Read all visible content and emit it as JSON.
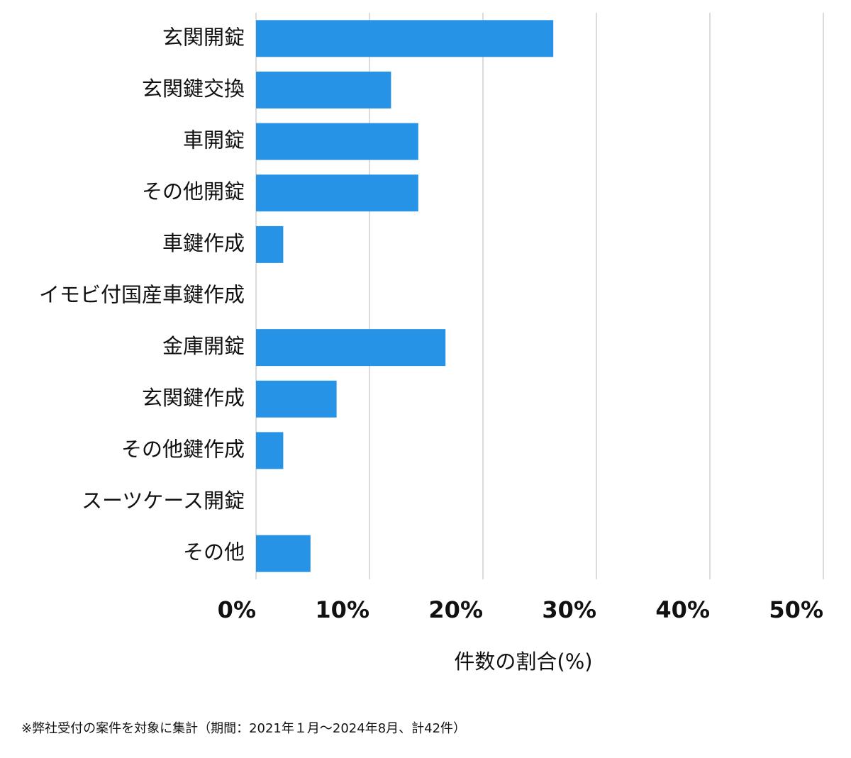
{
  "chart_data": {
    "type": "barh",
    "categories": [
      "玄関開錠",
      "玄関鍵交換",
      "車開錠",
      "その他開錠",
      "車鍵作成",
      "イモビ付国産車鍵作成",
      "金庫開錠",
      "玄関鍵作成",
      "その他鍵作成",
      "スーツケース開錠",
      "その他"
    ],
    "values": [
      26.2,
      11.9,
      14.3,
      14.3,
      2.4,
      0,
      16.7,
      7.1,
      2.4,
      0,
      4.8
    ],
    "color": "#2793e6",
    "xlim": [
      0,
      50
    ],
    "xticks": [
      {
        "value": 0,
        "label": "0%"
      },
      {
        "value": 10,
        "label": "10%"
      },
      {
        "value": 20,
        "label": "20%"
      },
      {
        "value": 30,
        "label": "30%"
      },
      {
        "value": 40,
        "label": "40%"
      },
      {
        "value": 50,
        "label": "50%"
      }
    ],
    "x_label": "件数の割合(%)",
    "grid": true,
    "footnote": "※弊社受付の案件を対象に集計（期間：2021年１月～2024年8月、計42件）"
  }
}
